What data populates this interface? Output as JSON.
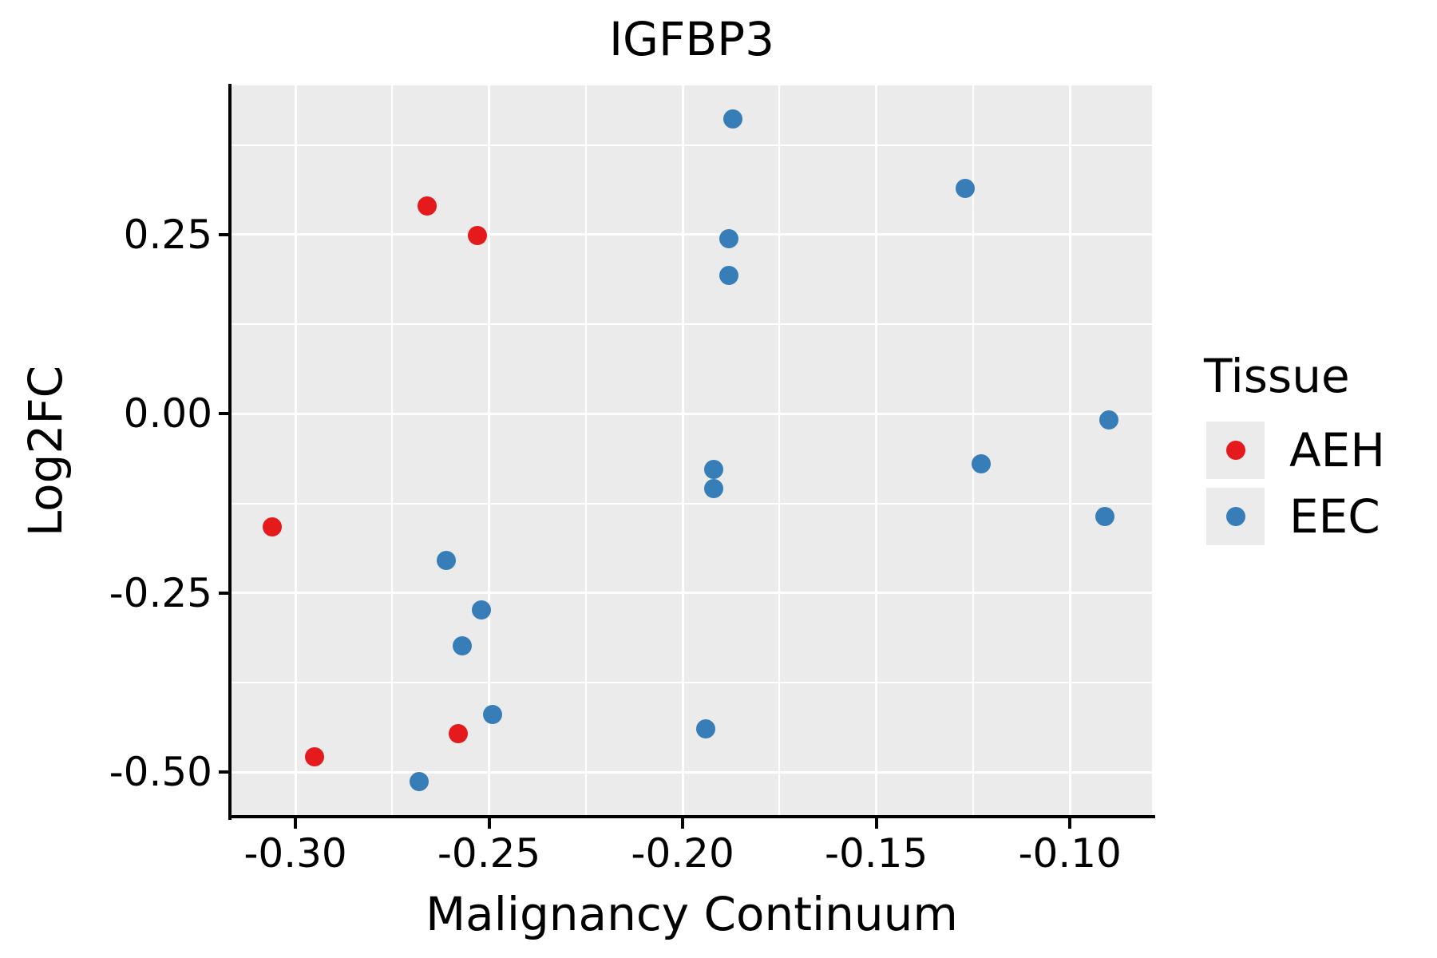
{
  "title": "IGFBP3",
  "axes": {
    "xlabel": "Malignancy Continuum",
    "ylabel": "Log2FC"
  },
  "legend": {
    "title": "Tissue",
    "entries": [
      {
        "label": "AEH",
        "color": "#e41a1c"
      },
      {
        "label": "EEC",
        "color": "#377eb8"
      }
    ]
  },
  "colors": {
    "panel_background": "#ebebeb",
    "gridline": "#ffffff",
    "axis": "#000000",
    "aeh": "#e41a1c",
    "eec": "#377eb8"
  },
  "chart_data": {
    "type": "scatter",
    "title": "IGFBP3",
    "xlabel": "Malignancy Continuum",
    "ylabel": "Log2FC",
    "legend_title": "Tissue",
    "legend_position": "right",
    "grid": true,
    "xlim": [
      -0.3165,
      -0.0788
    ],
    "ylim": [
      -0.562,
      0.458
    ],
    "x_ticks": [
      -0.3,
      -0.25,
      -0.2,
      -0.15,
      -0.1
    ],
    "x_tick_labels": [
      "-0.30",
      "-0.25",
      "-0.20",
      "-0.15",
      "-0.10"
    ],
    "x_minor_ticks": [
      -0.275,
      -0.225,
      -0.175,
      -0.125
    ],
    "y_ticks": [
      0.25,
      0.0,
      -0.25,
      -0.5
    ],
    "y_tick_labels": [
      "0.25",
      "0.00",
      "-0.25",
      "-0.50"
    ],
    "y_minor_ticks": [
      0.375,
      0.125,
      -0.125,
      -0.375
    ],
    "series": [
      {
        "name": "AEH",
        "color": "#e41a1c",
        "points": [
          [
            -0.266,
            0.29
          ],
          [
            -0.253,
            0.249
          ],
          [
            -0.306,
            -0.158
          ],
          [
            -0.258,
            -0.446
          ],
          [
            -0.295,
            -0.479
          ]
        ]
      },
      {
        "name": "EEC",
        "color": "#377eb8",
        "points": [
          [
            -0.187,
            0.411
          ],
          [
            -0.127,
            0.314
          ],
          [
            -0.188,
            0.244
          ],
          [
            -0.188,
            0.193
          ],
          [
            -0.09,
            -0.009
          ],
          [
            -0.123,
            -0.07
          ],
          [
            -0.192,
            -0.078
          ],
          [
            -0.192,
            -0.104
          ],
          [
            -0.091,
            -0.143
          ],
          [
            -0.261,
            -0.204
          ],
          [
            -0.252,
            -0.274
          ],
          [
            -0.257,
            -0.324
          ],
          [
            -0.249,
            -0.42
          ],
          [
            -0.194,
            -0.439
          ],
          [
            -0.268,
            -0.513
          ]
        ]
      }
    ]
  }
}
